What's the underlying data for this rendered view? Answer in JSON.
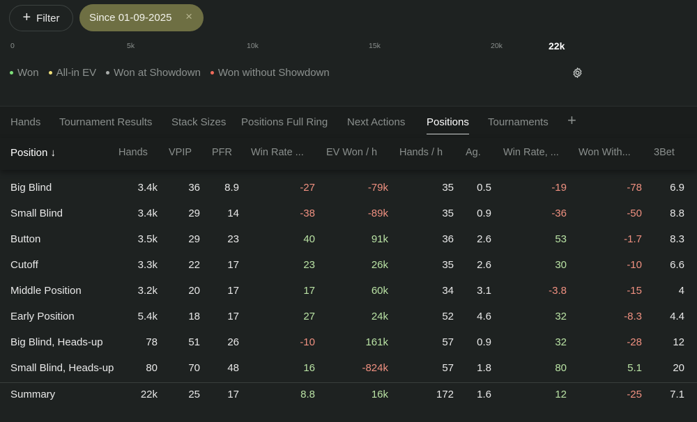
{
  "filter": {
    "label": "Filter"
  },
  "date_chip": {
    "label": "Since 01-09-2025",
    "close": "×"
  },
  "axis_ticks": [
    {
      "label": "0",
      "current": false
    },
    {
      "label": "5k",
      "current": false
    },
    {
      "label": "10k",
      "current": false
    },
    {
      "label": "15k",
      "current": false
    },
    {
      "label": "20k",
      "current": false
    },
    {
      "label": "22k",
      "current": true
    }
  ],
  "legend": [
    {
      "label": "Won",
      "color": "#7ee07a"
    },
    {
      "label": "All-in EV",
      "color": "#f0e07a"
    },
    {
      "label": "Won at Showdown",
      "color": "#a9adab"
    },
    {
      "label": "Won without Showdown",
      "color": "#ef6a5a"
    }
  ],
  "tabs": [
    {
      "label": "Hands",
      "active": false
    },
    {
      "label": "Tournament Results",
      "active": false
    },
    {
      "label": "Stack Sizes",
      "active": false
    },
    {
      "label": "Positions Full Ring",
      "active": false
    },
    {
      "label": "Next Actions",
      "active": false
    },
    {
      "label": "Positions",
      "active": true
    },
    {
      "label": "Tournaments",
      "active": false
    }
  ],
  "add_tab": "+",
  "columns": [
    {
      "label": "Position ↓"
    },
    {
      "label": "Hands"
    },
    {
      "label": "VPIP"
    },
    {
      "label": "PFR"
    },
    {
      "label": "Win Rate ..."
    },
    {
      "label": "EV Won / h"
    },
    {
      "label": "Hands / h"
    },
    {
      "label": "Ag."
    },
    {
      "label": "Win Rate, ..."
    },
    {
      "label": "Won With..."
    },
    {
      "label": "3Bet"
    }
  ],
  "rows": [
    {
      "name": "Big Blind",
      "values": [
        "3.4k",
        "36",
        "8.9",
        "-27",
        "-79k",
        "35",
        "0.5",
        "-19",
        "-78",
        "6.9"
      ]
    },
    {
      "name": "Small Blind",
      "values": [
        "3.4k",
        "29",
        "14",
        "-38",
        "-89k",
        "35",
        "0.9",
        "-36",
        "-50",
        "8.8"
      ]
    },
    {
      "name": "Button",
      "values": [
        "3.5k",
        "29",
        "23",
        "40",
        "91k",
        "36",
        "2.6",
        "53",
        "-1.7",
        "8.3"
      ]
    },
    {
      "name": "Cutoff",
      "values": [
        "3.3k",
        "22",
        "17",
        "23",
        "26k",
        "35",
        "2.6",
        "30",
        "-10",
        "6.6"
      ]
    },
    {
      "name": "Middle Position",
      "values": [
        "3.2k",
        "20",
        "17",
        "17",
        "60k",
        "34",
        "3.1",
        "-3.8",
        "-15",
        "4"
      ]
    },
    {
      "name": "Early Position",
      "values": [
        "5.4k",
        "18",
        "17",
        "27",
        "24k",
        "52",
        "4.6",
        "32",
        "-8.3",
        "4.4"
      ]
    },
    {
      "name": "Big Blind, Heads-up",
      "values": [
        "78",
        "51",
        "26",
        "-10",
        "161k",
        "57",
        "0.9",
        "32",
        "-28",
        "12"
      ]
    },
    {
      "name": "Small Blind, Heads-up",
      "values": [
        "80",
        "70",
        "48",
        "16",
        "-824k",
        "57",
        "1.8",
        "80",
        "5.1",
        "20"
      ]
    },
    {
      "name": "Summary",
      "values": [
        "22k",
        "25",
        "17",
        "8.8",
        "16k",
        "172",
        "1.6",
        "12",
        "-25",
        "7.1"
      ]
    }
  ],
  "colors": {
    "positive": "#b9e2a4",
    "negative": "#ef9080",
    "chip": "#6e6f43",
    "background": "#1e2221"
  }
}
